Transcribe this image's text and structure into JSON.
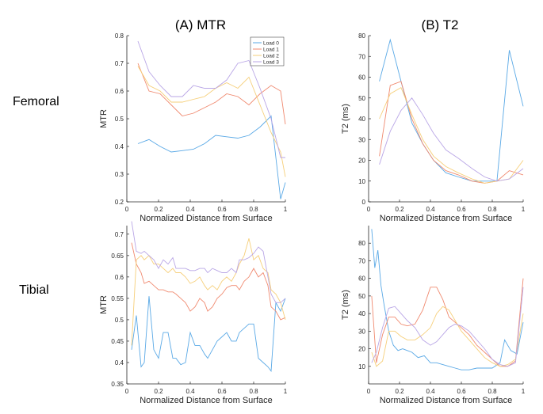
{
  "figure": {
    "column_titles": [
      "(A) MTR",
      "(B) T2"
    ],
    "row_labels": [
      "Femoral",
      "Tibial"
    ]
  },
  "series_colors": {
    "Load 0": "#5aa9e6",
    "Load 1": "#f08a70",
    "Load 2": "#f6cf7a",
    "Load 3": "#b9a6e6"
  },
  "chart_data": [
    {
      "id": "femoral-mtr",
      "type": "line",
      "title": "",
      "xlabel": "Normalized Distance from Surface",
      "ylabel": "MTR",
      "xlim": [
        0,
        1
      ],
      "ylim": [
        0.2,
        0.8
      ],
      "xticks": [
        0,
        0.2,
        0.4,
        0.6,
        0.8,
        1
      ],
      "xtick_labels": [
        "0",
        "0.2",
        "0.4",
        "0.6",
        "0.8",
        "1"
      ],
      "yticks": [
        0.2,
        0.3,
        0.4,
        0.5,
        0.6,
        0.7,
        0.8
      ],
      "ytick_labels": [
        "0.2",
        "0.3",
        "0.4",
        "0.5",
        "0.6",
        "0.7",
        "0.8"
      ],
      "grid": false,
      "legend": "top-right",
      "series": [
        {
          "name": "Load 0",
          "x": [
            0.07,
            0.14,
            0.21,
            0.28,
            0.35,
            0.42,
            0.49,
            0.56,
            0.63,
            0.7,
            0.77,
            0.84,
            0.91,
            0.97,
            1.0
          ],
          "y": [
            0.41,
            0.425,
            0.4,
            0.38,
            0.385,
            0.39,
            0.41,
            0.44,
            0.435,
            0.43,
            0.44,
            0.47,
            0.51,
            0.21,
            0.27
          ]
        },
        {
          "name": "Load 1",
          "x": [
            0.07,
            0.14,
            0.21,
            0.28,
            0.35,
            0.42,
            0.49,
            0.56,
            0.63,
            0.7,
            0.77,
            0.84,
            0.91,
            0.97,
            1.0
          ],
          "y": [
            0.7,
            0.6,
            0.59,
            0.55,
            0.51,
            0.52,
            0.54,
            0.56,
            0.59,
            0.58,
            0.55,
            0.59,
            0.62,
            0.6,
            0.48
          ]
        },
        {
          "name": "Load 2",
          "x": [
            0.07,
            0.14,
            0.21,
            0.28,
            0.35,
            0.42,
            0.49,
            0.56,
            0.63,
            0.7,
            0.77,
            0.84,
            0.91,
            0.97,
            1.0
          ],
          "y": [
            0.69,
            0.62,
            0.6,
            0.56,
            0.56,
            0.57,
            0.58,
            0.61,
            0.63,
            0.61,
            0.65,
            0.55,
            0.45,
            0.38,
            0.29
          ]
        },
        {
          "name": "Load 3",
          "x": [
            0.07,
            0.14,
            0.21,
            0.28,
            0.35,
            0.42,
            0.49,
            0.56,
            0.63,
            0.7,
            0.77,
            0.84,
            0.91,
            0.97,
            1.0
          ],
          "y": [
            0.78,
            0.67,
            0.62,
            0.58,
            0.58,
            0.62,
            0.61,
            0.61,
            0.64,
            0.7,
            0.71,
            0.61,
            0.5,
            0.36,
            0.36
          ]
        }
      ]
    },
    {
      "id": "femoral-t2",
      "type": "line",
      "title": "",
      "xlabel": "Normalized Distance from Surface",
      "ylabel": "T2 (ms)",
      "xlim": [
        0,
        1
      ],
      "ylim": [
        0,
        80
      ],
      "xticks": [
        0,
        0.2,
        0.4,
        0.6,
        0.8,
        1
      ],
      "xtick_labels": [
        "0",
        "0.2",
        "0.4",
        "0.6",
        "0.8",
        "1"
      ],
      "yticks": [
        0,
        10,
        20,
        30,
        40,
        50,
        60,
        70,
        80
      ],
      "ytick_labels": [
        "0",
        "10",
        "20",
        "30",
        "40",
        "50",
        "60",
        "70",
        "80"
      ],
      "grid": false,
      "legend": "none",
      "series": [
        {
          "name": "Load 0",
          "x": [
            0.07,
            0.14,
            0.21,
            0.28,
            0.35,
            0.42,
            0.5,
            0.58,
            0.67,
            0.75,
            0.83,
            0.91,
            1.0
          ],
          "y": [
            58,
            78,
            58,
            38,
            28,
            20,
            14,
            12,
            10,
            10,
            10,
            73,
            46
          ]
        },
        {
          "name": "Load 1",
          "x": [
            0.07,
            0.14,
            0.21,
            0.28,
            0.35,
            0.42,
            0.5,
            0.58,
            0.67,
            0.75,
            0.83,
            0.91,
            1.0
          ],
          "y": [
            22,
            56,
            58,
            40,
            28,
            20,
            15,
            13,
            10,
            9,
            10,
            15,
            13
          ]
        },
        {
          "name": "Load 2",
          "x": [
            0.07,
            0.14,
            0.21,
            0.28,
            0.35,
            0.42,
            0.5,
            0.58,
            0.67,
            0.75,
            0.83,
            0.91,
            1.0
          ],
          "y": [
            40,
            52,
            55,
            42,
            30,
            22,
            17,
            14,
            11,
            9,
            10,
            11,
            20
          ]
        },
        {
          "name": "Load 3",
          "x": [
            0.07,
            0.14,
            0.21,
            0.28,
            0.35,
            0.42,
            0.5,
            0.58,
            0.67,
            0.75,
            0.83,
            0.91,
            1.0
          ],
          "y": [
            18,
            34,
            44,
            50,
            42,
            33,
            25,
            21,
            16,
            12,
            10,
            11,
            16
          ]
        }
      ]
    },
    {
      "id": "tibial-mtr",
      "type": "line",
      "title": "",
      "xlabel": "Normalized Distance from Surface",
      "ylabel": "MTR",
      "xlim": [
        0,
        1
      ],
      "ylim": [
        0.35,
        0.72
      ],
      "xticks": [
        0,
        0.2,
        0.4,
        0.6,
        0.8,
        1
      ],
      "xtick_labels": [
        "0",
        "0.2",
        "0.4",
        "0.6",
        "0.8",
        "1"
      ],
      "yticks": [
        0.35,
        0.4,
        0.45,
        0.5,
        0.55,
        0.6,
        0.65,
        0.7
      ],
      "ytick_labels": [
        "0.35",
        "0.4",
        "0.45",
        "0.5",
        "0.55",
        "0.6",
        "0.65",
        "0.7"
      ],
      "grid": false,
      "legend": "none",
      "series": [
        {
          "name": "Load 0",
          "x": [
            0.03,
            0.06,
            0.09,
            0.11,
            0.14,
            0.17,
            0.2,
            0.23,
            0.26,
            0.29,
            0.31,
            0.34,
            0.37,
            0.4,
            0.43,
            0.46,
            0.49,
            0.51,
            0.54,
            0.57,
            0.6,
            0.63,
            0.66,
            0.69,
            0.71,
            0.74,
            0.77,
            0.8,
            0.83,
            0.86,
            0.89,
            0.91,
            0.94,
            0.97,
            1.0
          ],
          "y": [
            0.43,
            0.51,
            0.39,
            0.4,
            0.555,
            0.43,
            0.41,
            0.47,
            0.47,
            0.41,
            0.41,
            0.395,
            0.4,
            0.47,
            0.44,
            0.44,
            0.42,
            0.41,
            0.43,
            0.45,
            0.46,
            0.47,
            0.45,
            0.45,
            0.47,
            0.48,
            0.49,
            0.49,
            0.41,
            0.4,
            0.39,
            0.38,
            0.54,
            0.52,
            0.55
          ]
        },
        {
          "name": "Load 1",
          "x": [
            0.03,
            0.06,
            0.09,
            0.11,
            0.14,
            0.17,
            0.2,
            0.23,
            0.26,
            0.29,
            0.31,
            0.34,
            0.37,
            0.4,
            0.43,
            0.46,
            0.49,
            0.51,
            0.54,
            0.57,
            0.6,
            0.63,
            0.66,
            0.69,
            0.71,
            0.74,
            0.77,
            0.8,
            0.83,
            0.86,
            0.89,
            0.91,
            0.94,
            0.97,
            1.0
          ],
          "y": [
            0.68,
            0.63,
            0.61,
            0.585,
            0.59,
            0.58,
            0.57,
            0.57,
            0.565,
            0.565,
            0.56,
            0.55,
            0.54,
            0.52,
            0.53,
            0.55,
            0.54,
            0.52,
            0.53,
            0.55,
            0.56,
            0.575,
            0.58,
            0.58,
            0.57,
            0.59,
            0.6,
            0.62,
            0.6,
            0.61,
            0.58,
            0.53,
            0.52,
            0.5,
            0.505
          ]
        },
        {
          "name": "Load 2",
          "x": [
            0.03,
            0.06,
            0.09,
            0.11,
            0.14,
            0.17,
            0.2,
            0.23,
            0.26,
            0.29,
            0.31,
            0.34,
            0.37,
            0.4,
            0.43,
            0.46,
            0.49,
            0.51,
            0.54,
            0.57,
            0.6,
            0.63,
            0.66,
            0.69,
            0.71,
            0.74,
            0.77,
            0.8,
            0.83,
            0.86,
            0.89,
            0.91,
            0.94,
            0.97,
            1.0
          ],
          "y": [
            0.44,
            0.64,
            0.65,
            0.64,
            0.65,
            0.63,
            0.63,
            0.62,
            0.61,
            0.62,
            0.61,
            0.61,
            0.6,
            0.585,
            0.59,
            0.6,
            0.58,
            0.57,
            0.58,
            0.57,
            0.59,
            0.6,
            0.59,
            0.61,
            0.63,
            0.65,
            0.69,
            0.64,
            0.65,
            0.62,
            0.61,
            0.57,
            0.56,
            0.54,
            0.5
          ]
        },
        {
          "name": "Load 3",
          "x": [
            0.03,
            0.06,
            0.09,
            0.11,
            0.14,
            0.17,
            0.2,
            0.23,
            0.26,
            0.29,
            0.31,
            0.34,
            0.37,
            0.4,
            0.43,
            0.46,
            0.49,
            0.51,
            0.54,
            0.57,
            0.6,
            0.63,
            0.66,
            0.69,
            0.71,
            0.74,
            0.77,
            0.8,
            0.83,
            0.86,
            0.89,
            0.91,
            0.94,
            0.97,
            1.0
          ],
          "y": [
            0.73,
            0.66,
            0.655,
            0.66,
            0.65,
            0.64,
            0.62,
            0.64,
            0.63,
            0.645,
            0.62,
            0.62,
            0.62,
            0.615,
            0.615,
            0.62,
            0.62,
            0.61,
            0.62,
            0.615,
            0.61,
            0.61,
            0.62,
            0.61,
            0.64,
            0.64,
            0.645,
            0.655,
            0.67,
            0.66,
            0.6,
            0.56,
            0.54,
            0.54,
            0.55
          ]
        }
      ]
    },
    {
      "id": "tibial-t2",
      "type": "line",
      "title": "",
      "xlabel": "Normalized Distance from Surface",
      "ylabel": "T2 (ms)",
      "xlim": [
        0,
        1
      ],
      "ylim": [
        0,
        90
      ],
      "xticks": [
        0,
        0.2,
        0.4,
        0.6,
        0.8,
        1
      ],
      "xtick_labels": [
        "0",
        "0.2",
        "0.4",
        "0.6",
        "0.8",
        "1"
      ],
      "yticks": [
        10,
        20,
        30,
        40,
        50,
        60,
        70,
        80
      ],
      "ytick_labels": [
        "10",
        "20",
        "30",
        "40",
        "50",
        "60",
        "70",
        "80"
      ],
      "grid": false,
      "legend": "none",
      "series": [
        {
          "name": "Load 0",
          "x": [
            0.02,
            0.04,
            0.06,
            0.08,
            0.1,
            0.13,
            0.16,
            0.19,
            0.22,
            0.25,
            0.28,
            0.32,
            0.36,
            0.4,
            0.44,
            0.48,
            0.52,
            0.56,
            0.6,
            0.65,
            0.7,
            0.75,
            0.8,
            0.85,
            0.88,
            0.92,
            0.96,
            1.0
          ],
          "y": [
            88,
            66,
            76,
            56,
            45,
            30,
            22,
            19,
            20,
            19,
            18,
            15,
            16,
            12,
            12,
            11,
            10,
            9,
            8,
            8,
            9,
            9,
            9,
            12,
            25,
            19,
            17,
            35
          ]
        },
        {
          "name": "Load 1",
          "x": [
            0.02,
            0.05,
            0.09,
            0.13,
            0.17,
            0.21,
            0.25,
            0.3,
            0.35,
            0.4,
            0.44,
            0.48,
            0.52,
            0.56,
            0.6,
            0.65,
            0.7,
            0.75,
            0.8,
            0.85,
            0.9,
            0.95,
            1.0
          ],
          "y": [
            50,
            12,
            28,
            38,
            38,
            34,
            33,
            34,
            42,
            55,
            55,
            48,
            38,
            35,
            32,
            28,
            22,
            18,
            14,
            10,
            10,
            13,
            60
          ]
        },
        {
          "name": "Load 2",
          "x": [
            0.02,
            0.05,
            0.09,
            0.13,
            0.17,
            0.21,
            0.25,
            0.3,
            0.35,
            0.4,
            0.44,
            0.48,
            0.52,
            0.56,
            0.6,
            0.65,
            0.7,
            0.75,
            0.8,
            0.85,
            0.9,
            0.95,
            1.0
          ],
          "y": [
            18,
            10,
            13,
            30,
            30,
            27,
            25,
            25,
            28,
            32,
            40,
            44,
            42,
            36,
            30,
            25,
            20,
            15,
            12,
            10,
            11,
            14,
            40
          ]
        },
        {
          "name": "Load 3",
          "x": [
            0.02,
            0.05,
            0.09,
            0.13,
            0.17,
            0.21,
            0.25,
            0.3,
            0.35,
            0.4,
            0.44,
            0.48,
            0.52,
            0.56,
            0.6,
            0.65,
            0.7,
            0.75,
            0.8,
            0.85,
            0.9,
            0.95,
            1.0
          ],
          "y": [
            12,
            18,
            32,
            43,
            44,
            40,
            36,
            32,
            25,
            22,
            24,
            28,
            32,
            34,
            33,
            30,
            25,
            20,
            14,
            11,
            10,
            12,
            55
          ]
        }
      ]
    }
  ]
}
